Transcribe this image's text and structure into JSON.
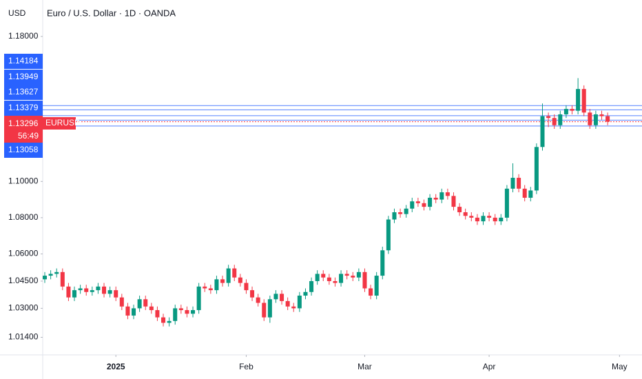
{
  "header": {
    "currency": "USD",
    "title": "Euro / U.S. Dollar · 1D · OANDA"
  },
  "chart_data": {
    "type": "candlestick",
    "up_color": "#089981",
    "down_color": "#f23645",
    "open": [
      1.046,
      1.048,
      1.049,
      1.05,
      1.042,
      1.036,
      1.04,
      1.041,
      1.039,
      1.04,
      1.042,
      1.038,
      1.04,
      1.036,
      1.031,
      1.026,
      1.03,
      1.035,
      1.031,
      1.029,
      1.025,
      1.022,
      1.023,
      1.03,
      1.029,
      1.027,
      1.029,
      1.042,
      1.041,
      1.04,
      1.046,
      1.044,
      1.052,
      1.047,
      1.044,
      1.04,
      1.036,
      1.033,
      1.025,
      1.035,
      1.038,
      1.034,
      1.031,
      1.03,
      1.037,
      1.039,
      1.045,
      1.049,
      1.047,
      1.045,
      1.044,
      1.049,
      1.048,
      1.047,
      1.05,
      1.041,
      1.037,
      1.048,
      1.062,
      1.079,
      1.083,
      1.082,
      1.085,
      1.089,
      1.088,
      1.086,
      1.091,
      1.09,
      1.094,
      1.092,
      1.086,
      1.083,
      1.081,
      1.08,
      1.078,
      1.081,
      1.08,
      1.078,
      1.08,
      1.096,
      1.102,
      1.096,
      1.091,
      1.095,
      1.119,
      1.136,
      1.135,
      1.131,
      1.137,
      1.14,
      1.139,
      1.151,
      1.138,
      1.131,
      1.137,
      1.136
    ],
    "high": [
      1.05,
      1.051,
      1.052,
      1.052,
      1.044,
      1.042,
      1.043,
      1.043,
      1.042,
      1.044,
      1.044,
      1.042,
      1.042,
      1.038,
      1.033,
      1.032,
      1.037,
      1.037,
      1.033,
      1.031,
      1.027,
      1.025,
      1.032,
      1.032,
      1.031,
      1.031,
      1.044,
      1.044,
      1.043,
      1.048,
      1.048,
      1.054,
      1.054,
      1.049,
      1.046,
      1.042,
      1.038,
      1.035,
      1.037,
      1.04,
      1.04,
      1.036,
      1.033,
      1.039,
      1.041,
      1.047,
      1.051,
      1.051,
      1.049,
      1.047,
      1.051,
      1.051,
      1.05,
      1.052,
      1.052,
      1.043,
      1.05,
      1.064,
      1.081,
      1.085,
      1.085,
      1.087,
      1.091,
      1.091,
      1.09,
      1.093,
      1.093,
      1.096,
      1.096,
      1.094,
      1.088,
      1.085,
      1.083,
      1.082,
      1.083,
      1.083,
      1.082,
      1.082,
      1.098,
      1.11,
      1.104,
      1.098,
      1.097,
      1.121,
      1.143,
      1.138,
      1.137,
      1.139,
      1.142,
      1.142,
      1.157,
      1.153,
      1.14,
      1.139,
      1.139,
      1.138
    ],
    "low": [
      1.044,
      1.046,
      1.047,
      1.04,
      1.034,
      1.034,
      1.038,
      1.037,
      1.037,
      1.038,
      1.036,
      1.036,
      1.034,
      1.029,
      1.024,
      1.024,
      1.028,
      1.029,
      1.027,
      1.023,
      1.02,
      1.02,
      1.021,
      1.027,
      1.025,
      1.025,
      1.027,
      1.039,
      1.038,
      1.038,
      1.042,
      1.042,
      1.045,
      1.042,
      1.038,
      1.034,
      1.031,
      1.023,
      1.022,
      1.033,
      1.032,
      1.029,
      1.028,
      1.028,
      1.035,
      1.037,
      1.043,
      1.045,
      1.043,
      1.042,
      1.042,
      1.046,
      1.045,
      1.045,
      1.039,
      1.035,
      1.035,
      1.046,
      1.06,
      1.077,
      1.08,
      1.08,
      1.083,
      1.086,
      1.084,
      1.084,
      1.088,
      1.088,
      1.09,
      1.084,
      1.081,
      1.079,
      1.078,
      1.076,
      1.076,
      1.078,
      1.076,
      1.076,
      1.078,
      1.094,
      1.094,
      1.089,
      1.089,
      1.093,
      1.117,
      1.13,
      1.129,
      1.129,
      1.135,
      1.137,
      1.137,
      1.136,
      1.129,
      1.129,
      1.134,
      1.131
    ],
    "close": [
      1.048,
      1.049,
      1.05,
      1.042,
      1.036,
      1.04,
      1.041,
      1.039,
      1.04,
      1.042,
      1.038,
      1.04,
      1.036,
      1.031,
      1.026,
      1.03,
      1.035,
      1.031,
      1.029,
      1.025,
      1.022,
      1.023,
      1.03,
      1.029,
      1.027,
      1.029,
      1.042,
      1.041,
      1.04,
      1.046,
      1.044,
      1.052,
      1.047,
      1.044,
      1.04,
      1.036,
      1.033,
      1.025,
      1.035,
      1.038,
      1.034,
      1.031,
      1.03,
      1.037,
      1.039,
      1.045,
      1.049,
      1.047,
      1.045,
      1.044,
      1.049,
      1.048,
      1.047,
      1.05,
      1.041,
      1.037,
      1.048,
      1.062,
      1.079,
      1.083,
      1.082,
      1.085,
      1.089,
      1.088,
      1.086,
      1.091,
      1.09,
      1.094,
      1.092,
      1.086,
      1.083,
      1.081,
      1.08,
      1.078,
      1.081,
      1.08,
      1.078,
      1.08,
      1.096,
      1.102,
      1.096,
      1.091,
      1.095,
      1.119,
      1.136,
      1.135,
      1.131,
      1.137,
      1.14,
      1.139,
      1.151,
      1.138,
      1.131,
      1.137,
      1.136,
      1.13296
    ],
    "xlim": [
      -0.35,
      100.8
    ],
    "xticks": [
      {
        "value": 12,
        "label": "2025"
      },
      {
        "value": 34,
        "label": "Feb"
      },
      {
        "value": 54,
        "label": "Mar"
      },
      {
        "value": 75,
        "label": "Apr"
      },
      {
        "value": 97,
        "label": "May"
      }
    ],
    "ylim": [
      1.0043,
      1.2001
    ],
    "yticks": [
      {
        "value": 1.18,
        "label": "1.18000"
      },
      {
        "value": 1.1,
        "label": "1.10000"
      },
      {
        "value": 1.08,
        "label": "1.08000"
      },
      {
        "value": 1.06,
        "label": "1.06000"
      },
      {
        "value": 1.045,
        "label": "1.04500"
      },
      {
        "value": 1.03,
        "label": "1.03000"
      },
      {
        "value": 1.014,
        "label": "1.01400"
      }
    ],
    "price_lines": {
      "color": "#2962ff",
      "values": [
        1.14184,
        1.13949,
        1.13627,
        1.13379,
        1.13058
      ]
    },
    "last_price": {
      "value": 1.13296,
      "symbol": "EURUSD",
      "countdown": "56:49",
      "color": "#f23645"
    }
  }
}
